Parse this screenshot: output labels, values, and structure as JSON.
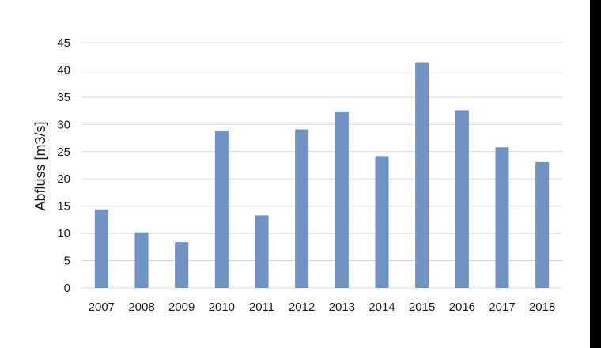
{
  "chart_data": {
    "type": "bar",
    "categories": [
      "2007",
      "2008",
      "2009",
      "2010",
      "2011",
      "2012",
      "2013",
      "2014",
      "2015",
      "2016",
      "2017",
      "2018"
    ],
    "values": [
      14.4,
      10.2,
      8.4,
      28.9,
      13.3,
      29.1,
      32.4,
      24.2,
      41.3,
      32.6,
      25.8,
      23.1
    ],
    "title": "",
    "xlabel": "",
    "ylabel": "Abfluss [m3/s]",
    "ylim": [
      0,
      45
    ],
    "yticks": [
      "0",
      "5",
      "10",
      "15",
      "20",
      "25",
      "30",
      "35",
      "40",
      "45"
    ],
    "grid": true,
    "legend": "none",
    "bar_color": "#6f93c3",
    "grid_color": "#d9d9d9"
  }
}
